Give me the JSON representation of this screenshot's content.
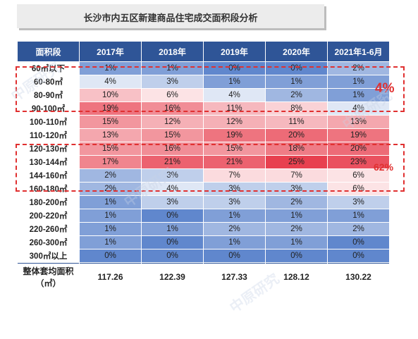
{
  "title": "长沙市内五区新建商品住宅成交面积段分析",
  "chart_data": {
    "type": "table",
    "columns": [
      "面积段",
      "2017年",
      "2018年",
      "2019年",
      "2020年",
      "2021年1-6月"
    ],
    "rows": [
      {
        "label": "60㎡以下",
        "values": [
          "1%",
          "1%",
          "0%",
          "0%",
          "2%"
        ]
      },
      {
        "label": "60-80㎡",
        "values": [
          "4%",
          "3%",
          "1%",
          "1%",
          "1%"
        ]
      },
      {
        "label": "80-90㎡",
        "values": [
          "10%",
          "6%",
          "4%",
          "2%",
          "1%"
        ]
      },
      {
        "label": "90-100㎡",
        "values": [
          "19%",
          "16%",
          "11%",
          "8%",
          "4%"
        ]
      },
      {
        "label": "100-110㎡",
        "values": [
          "15%",
          "12%",
          "12%",
          "11%",
          "13%"
        ]
      },
      {
        "label": "110-120㎡",
        "values": [
          "13%",
          "15%",
          "19%",
          "20%",
          "19%"
        ]
      },
      {
        "label": "120-130㎡",
        "values": [
          "15%",
          "16%",
          "15%",
          "18%",
          "20%"
        ]
      },
      {
        "label": "130-144㎡",
        "values": [
          "17%",
          "21%",
          "21%",
          "25%",
          "23%"
        ]
      },
      {
        "label": "144-160㎡",
        "values": [
          "2%",
          "3%",
          "7%",
          "7%",
          "6%"
        ]
      },
      {
        "label": "160-180㎡",
        "values": [
          "2%",
          "4%",
          "3%",
          "3%",
          "6%"
        ]
      },
      {
        "label": "180-200㎡",
        "values": [
          "1%",
          "3%",
          "3%",
          "2%",
          "3%"
        ]
      },
      {
        "label": "200-220㎡",
        "values": [
          "1%",
          "0%",
          "1%",
          "1%",
          "1%"
        ]
      },
      {
        "label": "220-260㎡",
        "values": [
          "1%",
          "1%",
          "2%",
          "2%",
          "2%"
        ]
      },
      {
        "label": "260-300㎡",
        "values": [
          "1%",
          "0%",
          "1%",
          "1%",
          "0%"
        ]
      },
      {
        "label": "300㎡以上",
        "values": [
          "0%",
          "0%",
          "0%",
          "0%",
          "0%"
        ]
      }
    ],
    "total_row": {
      "label": "整体套均面积（㎡）",
      "values": [
        "117.26",
        "122.39",
        "127.33",
        "128.12",
        "130.22"
      ]
    },
    "annotations": [
      "4%",
      "62%"
    ],
    "colors": {
      "header": "#2f5597",
      "low": "#4472c4",
      "high": "#e8404f",
      "annotation": "#e03030"
    }
  },
  "watermark": "中原研究"
}
